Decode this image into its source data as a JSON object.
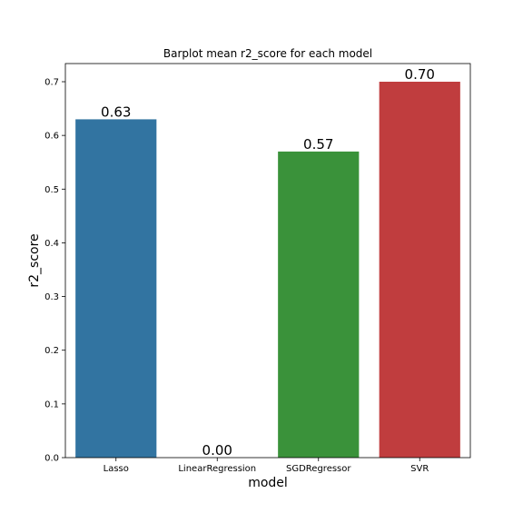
{
  "chart_data": {
    "type": "bar",
    "title": "Barplot mean r2_score for each model",
    "xlabel": "model",
    "ylabel": "r2_score",
    "categories": [
      "Lasso",
      "LinearRegression",
      "SGDRegressor",
      "SVR"
    ],
    "values": [
      0.63,
      0.0,
      0.57,
      0.7
    ],
    "value_labels": [
      "0.63",
      "0.00",
      "0.57",
      "0.70"
    ],
    "colors": [
      "#3274a1",
      "#e1812c",
      "#3a923a",
      "#c03d3e"
    ],
    "ylim": [
      0,
      0.7
    ],
    "yticks": [
      0.0,
      0.1,
      0.2,
      0.3,
      0.4,
      0.5,
      0.6,
      0.7
    ],
    "ytick_labels": [
      "0.0",
      "0.1",
      "0.2",
      "0.3",
      "0.4",
      "0.5",
      "0.6",
      "0.7"
    ],
    "grid": false,
    "legend": "none"
  }
}
